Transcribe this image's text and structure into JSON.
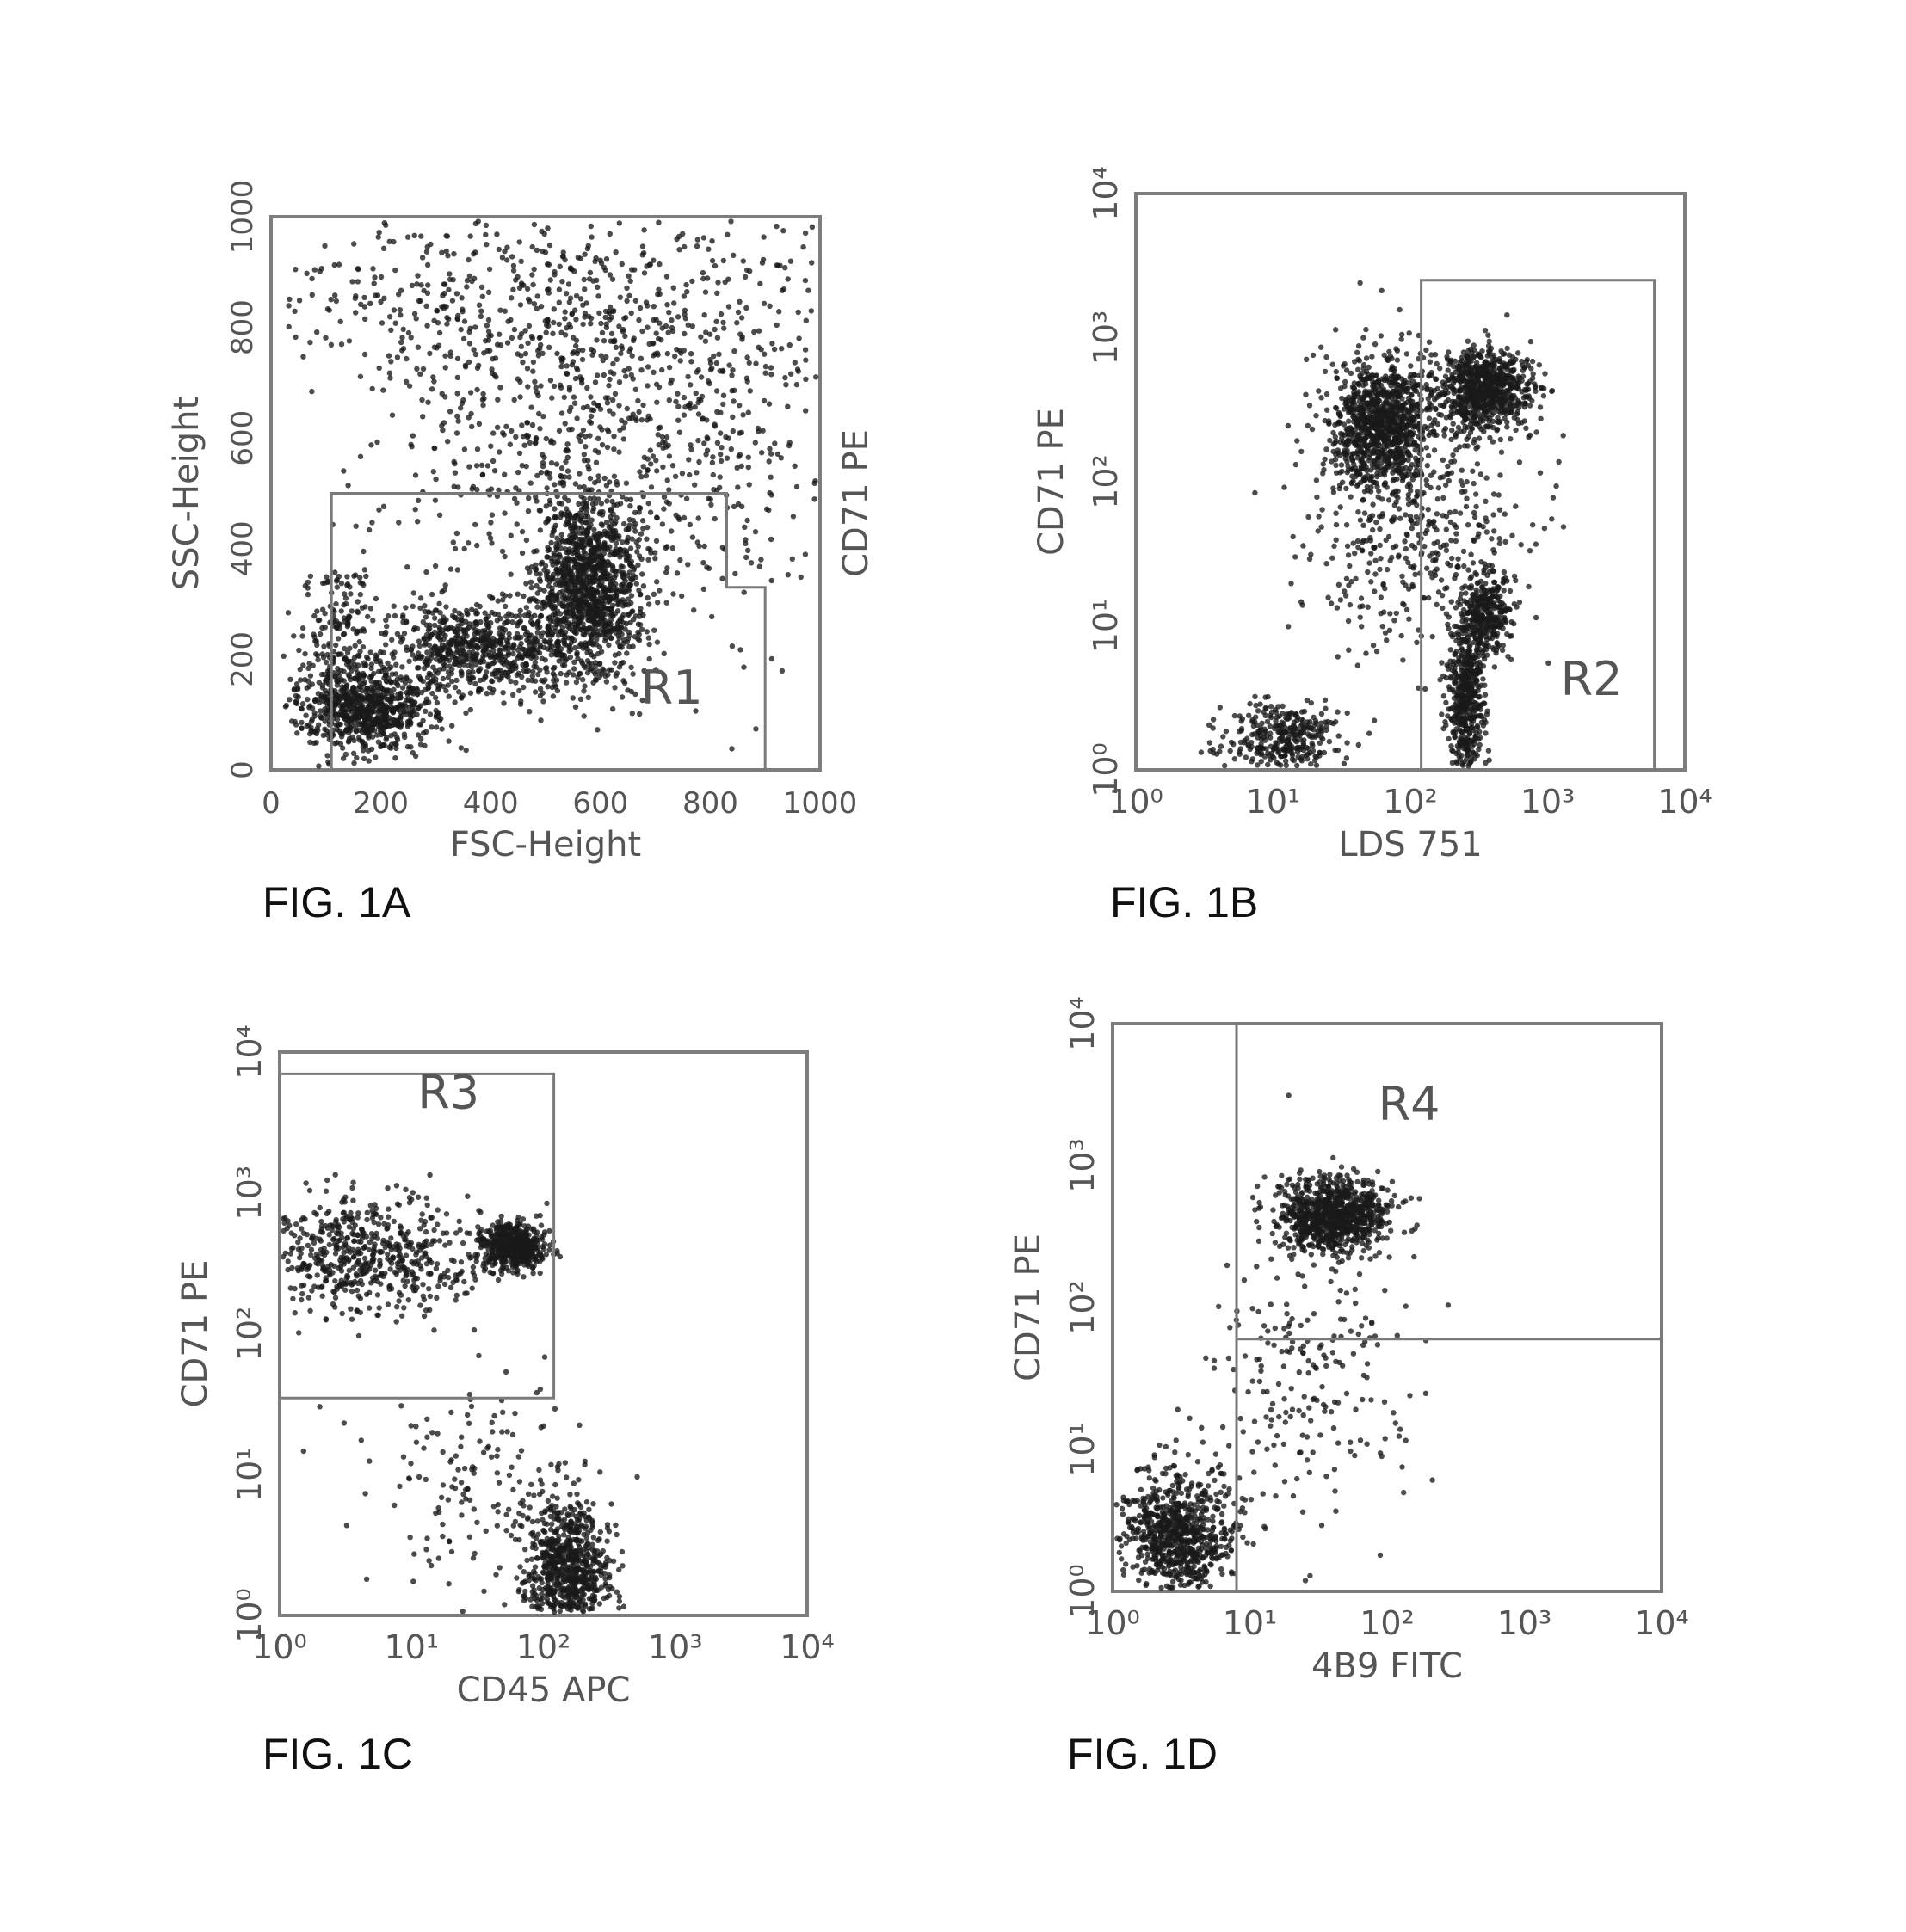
{
  "colors": {
    "ink": "#1a1a1a",
    "frame": "#7d7d7d",
    "gate": "#7a7a7a",
    "label": "#555555"
  },
  "panels": [
    {
      "figure_label": "FIG. 1A",
      "extra_label": "CD71 PE",
      "chart_data": {
        "type": "scatter",
        "xlabel": "FSC-Height",
        "ylabel": "SSC-Height",
        "xscale": "linear",
        "yscale": "linear",
        "xlim": [
          0,
          1000
        ],
        "ylim": [
          0,
          1000
        ],
        "xticks": [
          0,
          200,
          400,
          600,
          800,
          1000
        ],
        "yticks": [
          0,
          200,
          400,
          600,
          800,
          1000
        ],
        "grid": false,
        "gates": [
          {
            "name": "R1",
            "vertices": [
              [
                110,
                0
              ],
              [
                900,
                0
              ],
              [
                900,
                330
              ],
              [
                830,
                330
              ],
              [
                830,
                500
              ],
              [
                110,
                500
              ]
            ]
          }
        ],
        "populations": [
          {
            "x": 580,
            "y": 330,
            "sx": 45,
            "sy": 80,
            "n": 1100
          },
          {
            "x": 380,
            "y": 220,
            "sx": 90,
            "sy": 45,
            "n": 700
          },
          {
            "x": 180,
            "y": 110,
            "sx": 60,
            "sy": 35,
            "n": 650
          },
          {
            "x": 120,
            "y": 200,
            "sx": 40,
            "sy": 90,
            "n": 250
          },
          {
            "x": 620,
            "y": 600,
            "sx": 200,
            "sy": 200,
            "n": 950
          },
          {
            "x": 500,
            "y": 850,
            "sx": 280,
            "sy": 100,
            "n": 500
          }
        ]
      }
    },
    {
      "figure_label": "FIG. 1B",
      "chart_data": {
        "type": "scatter",
        "xlabel": "LDS 751",
        "ylabel": "CD71 PE",
        "xscale": "log",
        "yscale": "log",
        "xlim": [
          1,
          10000
        ],
        "ylim": [
          1,
          10000
        ],
        "xticks": [
          1,
          10,
          100,
          1000,
          10000
        ],
        "yticks": [
          1,
          10,
          100,
          1000,
          10000
        ],
        "xticklabels": [
          "10⁰",
          "10¹",
          "10²",
          "10³",
          "10⁴"
        ],
        "yticklabels": [
          "10⁰",
          "10¹",
          "10²",
          "10³",
          "10⁴"
        ],
        "grid": false,
        "gates": [
          {
            "name": "R2",
            "vertices": [
              [
                120,
                1
              ],
              [
                6000,
                1
              ],
              [
                6000,
                2500
              ],
              [
                120,
                2500
              ]
            ]
          }
        ],
        "populations": [
          {
            "x": 60,
            "y": 250,
            "sx": 0.18,
            "sy": 0.22,
            "n": 950
          },
          {
            "x": 350,
            "y": 450,
            "sx": 0.18,
            "sy": 0.14,
            "n": 750
          },
          {
            "x": 250,
            "y": 3,
            "sx": 0.07,
            "sy": 0.3,
            "n": 500
          },
          {
            "x": 350,
            "y": 12,
            "sx": 0.09,
            "sy": 0.14,
            "n": 300
          },
          {
            "x": 12,
            "y": 1.6,
            "sx": 0.2,
            "sy": 0.13,
            "n": 350
          },
          {
            "x": 100,
            "y": 60,
            "sx": 0.4,
            "sy": 0.5,
            "n": 500
          }
        ]
      }
    },
    {
      "figure_label": "FIG. 1C",
      "chart_data": {
        "type": "scatter",
        "xlabel": "CD45 APC",
        "ylabel": "CD71 PE",
        "xscale": "log",
        "yscale": "log",
        "xlim": [
          1,
          10000
        ],
        "ylim": [
          1,
          10000
        ],
        "xticks": [
          1,
          10,
          100,
          1000,
          10000
        ],
        "yticks": [
          1,
          10,
          100,
          1000,
          10000
        ],
        "xticklabels": [
          "10⁰",
          "10¹",
          "10²",
          "10³",
          "10⁴"
        ],
        "yticklabels": [
          "10⁰",
          "10¹",
          "10²",
          "10³",
          "10⁴"
        ],
        "grid": false,
        "gates": [
          {
            "name": "R3",
            "vertices": [
              [
                1,
                35
              ],
              [
                120,
                35
              ],
              [
                120,
                7000
              ],
              [
                1,
                7000
              ]
            ]
          }
        ],
        "populations": [
          {
            "x": 60,
            "y": 420,
            "sx": 0.12,
            "sy": 0.08,
            "n": 500
          },
          {
            "x": 4,
            "y": 350,
            "sx": 0.5,
            "sy": 0.2,
            "n": 650
          },
          {
            "x": 150,
            "y": 2.2,
            "sx": 0.16,
            "sy": 0.22,
            "n": 700
          },
          {
            "x": 40,
            "y": 8,
            "sx": 0.45,
            "sy": 0.4,
            "n": 180
          }
        ]
      }
    },
    {
      "figure_label": "FIG. 1D",
      "chart_data": {
        "type": "scatter",
        "xlabel": "4B9 FITC",
        "ylabel": "CD71 PE",
        "xscale": "log",
        "yscale": "log",
        "xlim": [
          1,
          10000
        ],
        "ylim": [
          1,
          10000
        ],
        "xticks": [
          1,
          10,
          100,
          1000,
          10000
        ],
        "yticks": [
          1,
          10,
          100,
          1000,
          10000
        ],
        "xticklabels": [
          "10⁰",
          "10¹",
          "10²",
          "10³",
          "10⁴"
        ],
        "yticklabels": [
          "10⁰",
          "10¹",
          "10²",
          "10³",
          "10⁴"
        ],
        "grid": false,
        "gates": [
          {
            "name": "R4",
            "vertices": [
              [
                8,
                60
              ],
              [
                10000,
                60
              ],
              [
                10000,
                10000
              ],
              [
                8,
                10000
              ]
            ]
          },
          {
            "name": "",
            "vertices": [
              [
                8,
                1
              ],
              [
                10000,
                1
              ],
              [
                10000,
                60
              ],
              [
                8,
                60
              ]
            ]
          }
        ],
        "populations": [
          {
            "x": 40,
            "y": 450,
            "sx": 0.2,
            "sy": 0.13,
            "n": 900
          },
          {
            "x": 3,
            "y": 2.5,
            "sx": 0.2,
            "sy": 0.22,
            "n": 800
          },
          {
            "x": 25,
            "y": 30,
            "sx": 0.4,
            "sy": 0.5,
            "n": 220
          }
        ]
      }
    }
  ]
}
